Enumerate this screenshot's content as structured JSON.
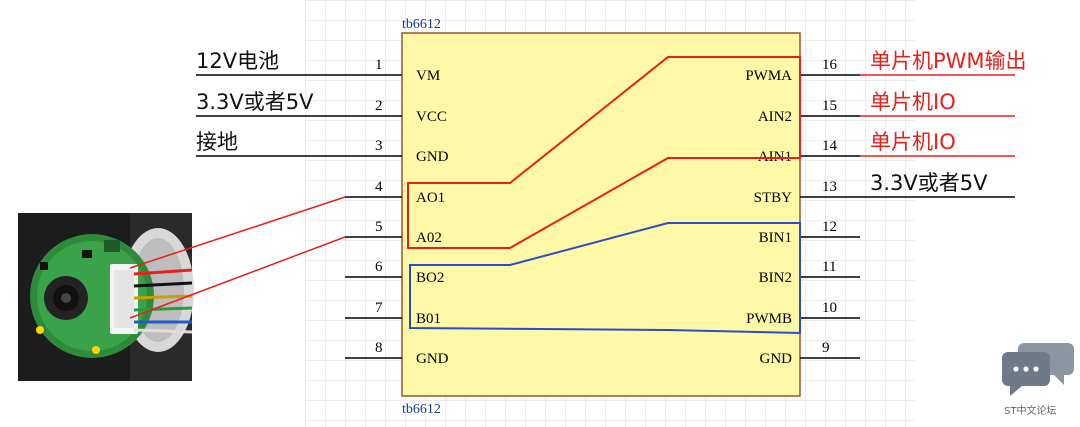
{
  "chip": {
    "name_top": "tb6612",
    "name_bottom": "tb6612",
    "left_pins": [
      {
        "num": "1",
        "name": "VM"
      },
      {
        "num": "2",
        "name": "VCC"
      },
      {
        "num": "3",
        "name": "GND"
      },
      {
        "num": "4",
        "name": "AO1"
      },
      {
        "num": "5",
        "name": "A02"
      },
      {
        "num": "6",
        "name": "BO2"
      },
      {
        "num": "7",
        "name": "B01"
      },
      {
        "num": "8",
        "name": "GND"
      }
    ],
    "right_pins": [
      {
        "num": "16",
        "name": "PWMA"
      },
      {
        "num": "15",
        "name": "AIN2"
      },
      {
        "num": "14",
        "name": "AIN1"
      },
      {
        "num": "13",
        "name": "STBY"
      },
      {
        "num": "12",
        "name": "BIN1"
      },
      {
        "num": "11",
        "name": "BIN2"
      },
      {
        "num": "10",
        "name": "PWMB"
      },
      {
        "num": "9",
        "name": "GND"
      }
    ]
  },
  "labels": {
    "left": [
      "12V电池",
      "3.3V或者5V",
      "接地"
    ],
    "right": [
      "单片机PWM输出",
      "单片机IO",
      "单片机IO",
      "3.3V或者5V"
    ]
  },
  "colors": {
    "chip_fill": "#fff8a6",
    "chip_border": "#a0522d",
    "red": "#e8201c",
    "blue": "#2a4cc8"
  },
  "watermark": {
    "text": "ST中文论坛",
    "icon": "chat-bubbles-icon"
  },
  "photo": {
    "icon": "motor-encoder-photo-icon"
  }
}
